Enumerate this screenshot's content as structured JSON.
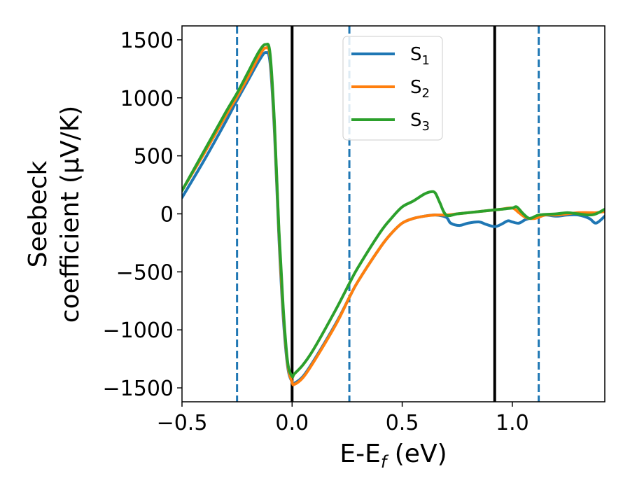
{
  "chart_data": {
    "type": "line",
    "xlabel": "E-E",
    "xlabel_sub": "f",
    "xlabel_unit": " (eV)",
    "ylabel_line1": "Seebeck",
    "ylabel_line2": "coefficient  (μV/K)",
    "xlim": [
      -0.5,
      1.42
    ],
    "ylim": [
      -1620,
      1620
    ],
    "x_ticks": [
      -0.5,
      0.0,
      0.5,
      1.0
    ],
    "x_tick_labels": [
      "−0.5",
      "0.0",
      "0.5",
      "1.0"
    ],
    "y_ticks": [
      1500,
      1000,
      500,
      0,
      -500,
      -1000,
      -1500
    ],
    "y_tick_labels": [
      "1500",
      "1000",
      "500",
      "0",
      "−500",
      "−1000",
      "−1500"
    ],
    "legend_position": "top-center",
    "vlines": [
      {
        "x": -0.25,
        "style": "dashed",
        "color": "#1f77b4"
      },
      {
        "x": 0.0,
        "style": "solid",
        "color": "#000000"
      },
      {
        "x": 0.26,
        "style": "dashed",
        "color": "#1f77b4"
      },
      {
        "x": 0.92,
        "style": "solid",
        "color": "#000000"
      },
      {
        "x": 1.12,
        "style": "dashed",
        "color": "#1f77b4"
      }
    ],
    "series": [
      {
        "name": "S",
        "sub": "1",
        "color": "#1f77b4",
        "x": [
          -0.5,
          -0.4,
          -0.3,
          -0.25,
          -0.2,
          -0.15,
          -0.12,
          -0.1,
          -0.08,
          -0.06,
          -0.04,
          -0.02,
          0.0,
          0.01,
          0.05,
          0.1,
          0.2,
          0.26,
          0.3,
          0.4,
          0.45,
          0.5,
          0.55,
          0.6,
          0.65,
          0.7,
          0.72,
          0.76,
          0.8,
          0.85,
          0.88,
          0.92,
          0.95,
          0.98,
          1.0,
          1.03,
          1.06,
          1.1,
          1.15,
          1.2,
          1.25,
          1.3,
          1.35,
          1.38,
          1.42
        ],
        "y": [
          140,
          460,
          800,
          980,
          1150,
          1320,
          1390,
          1300,
          700,
          -200,
          -900,
          -1320,
          -1450,
          -1460,
          -1400,
          -1260,
          -940,
          -720,
          -580,
          -290,
          -170,
          -80,
          -40,
          -20,
          -10,
          -30,
          -80,
          -100,
          -80,
          -70,
          -90,
          -110,
          -90,
          -60,
          -70,
          -80,
          -50,
          -30,
          -10,
          -20,
          -10,
          -10,
          -40,
          -80,
          -20
        ]
      },
      {
        "name": "S",
        "sub": "2",
        "color": "#ff7f0e",
        "x": [
          -0.5,
          -0.4,
          -0.3,
          -0.25,
          -0.2,
          -0.15,
          -0.12,
          -0.1,
          -0.08,
          -0.06,
          -0.04,
          -0.02,
          0.0,
          0.01,
          0.05,
          0.1,
          0.2,
          0.26,
          0.3,
          0.4,
          0.45,
          0.5,
          0.55,
          0.6,
          0.65,
          0.7,
          0.75,
          0.8,
          0.85,
          0.9,
          0.95,
          1.0,
          1.03,
          1.06,
          1.1,
          1.15,
          1.2,
          1.25,
          1.3,
          1.35,
          1.38,
          1.42
        ],
        "y": [
          200,
          520,
          850,
          1010,
          1180,
          1360,
          1430,
          1350,
          750,
          -150,
          -850,
          -1300,
          -1450,
          -1470,
          -1410,
          -1270,
          -950,
          -720,
          -580,
          -290,
          -170,
          -80,
          -40,
          -20,
          -10,
          -10,
          0,
          10,
          20,
          30,
          40,
          50,
          10,
          -30,
          -40,
          -10,
          -10,
          0,
          10,
          10,
          10,
          20
        ]
      },
      {
        "name": "S",
        "sub": "3",
        "color": "#2ca02c",
        "x": [
          -0.5,
          -0.4,
          -0.3,
          -0.25,
          -0.2,
          -0.15,
          -0.12,
          -0.1,
          -0.08,
          -0.06,
          -0.04,
          -0.02,
          0.0,
          0.01,
          0.05,
          0.1,
          0.2,
          0.26,
          0.3,
          0.4,
          0.45,
          0.5,
          0.55,
          0.6,
          0.63,
          0.65,
          0.67,
          0.7,
          0.75,
          0.8,
          0.85,
          0.9,
          0.95,
          1.0,
          1.02,
          1.05,
          1.08,
          1.12,
          1.2,
          1.25,
          1.3,
          1.35,
          1.38,
          1.42
        ],
        "y": [
          200,
          540,
          880,
          1040,
          1220,
          1400,
          1460,
          1380,
          780,
          -130,
          -820,
          -1280,
          -1400,
          -1380,
          -1300,
          -1160,
          -820,
          -600,
          -460,
          -160,
          -40,
          60,
          110,
          170,
          190,
          180,
          100,
          -10,
          0,
          10,
          20,
          30,
          40,
          50,
          60,
          0,
          -40,
          -10,
          0,
          10,
          0,
          -10,
          0,
          40
        ]
      }
    ]
  }
}
